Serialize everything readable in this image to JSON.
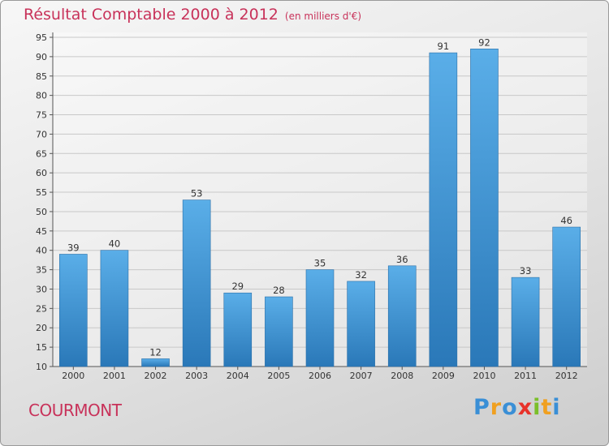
{
  "title": "Résultat Comptable 2000 à 2012",
  "subtitle": "(en milliers d'€)",
  "commune": "COURMONT",
  "logo": {
    "letters": [
      "P",
      "r",
      "o",
      "x",
      "i",
      "t",
      "i"
    ],
    "colors": [
      "#3a8fd6",
      "#f0a020",
      "#3a8fd6",
      "#e8322a",
      "#7bbf2a",
      "#f0a020",
      "#3a8fd6"
    ]
  },
  "colors": {
    "bar": "#4a9fe0",
    "bar_dark": "#2f7fc0",
    "title": "#c8325a"
  },
  "chart_data": {
    "type": "bar",
    "categories": [
      "2000",
      "2001",
      "2002",
      "2003",
      "2004",
      "2005",
      "2006",
      "2007",
      "2008",
      "2009",
      "2010",
      "2011",
      "2012"
    ],
    "values": [
      39,
      40,
      12,
      53,
      29,
      28,
      35,
      32,
      36,
      91,
      92,
      33,
      46
    ],
    "ylim": [
      10,
      95
    ],
    "yticks": [
      10,
      15,
      20,
      25,
      30,
      35,
      40,
      45,
      50,
      55,
      60,
      65,
      70,
      75,
      80,
      85,
      90,
      95
    ],
    "grid": true
  }
}
